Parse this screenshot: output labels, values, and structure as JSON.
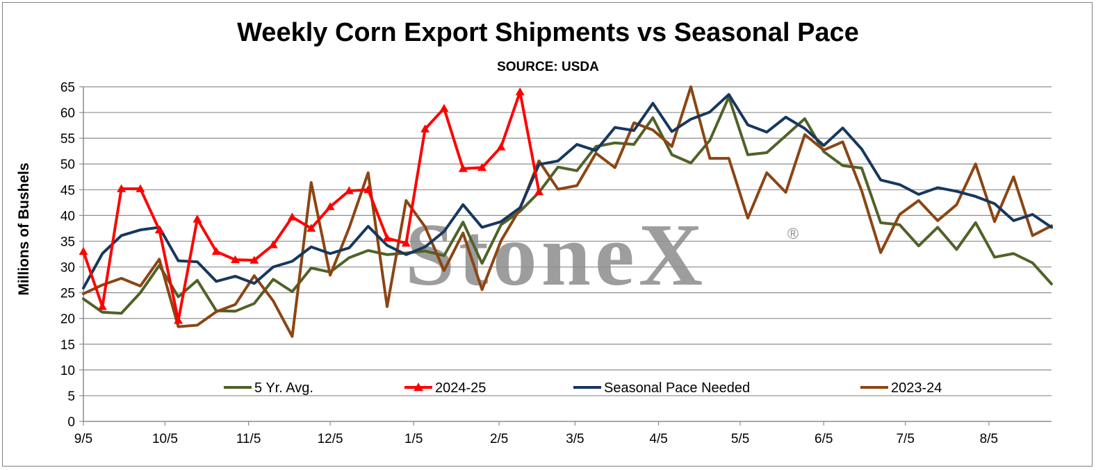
{
  "chart_data": {
    "type": "line",
    "title": "Weekly Corn Export Shipments vs Seasonal Pace",
    "subtitle": "SOURCE: USDA",
    "ylabel": "Millions of Bushels",
    "xlabel": "",
    "ylim": [
      0,
      65
    ],
    "yticks": [
      0,
      5,
      10,
      15,
      20,
      25,
      30,
      35,
      40,
      45,
      50,
      55,
      60,
      65
    ],
    "grid": true,
    "legend_position": "bottom-inside",
    "x_tick_labels": [
      {
        "label": "9/5",
        "week": 0
      },
      {
        "label": "10/5",
        "week": 4.3
      },
      {
        "label": "11/5",
        "week": 8.7
      },
      {
        "label": "12/5",
        "week": 13
      },
      {
        "label": "1/5",
        "week": 17.4
      },
      {
        "label": "2/5",
        "week": 21.9
      },
      {
        "label": "3/5",
        "week": 25.9
      },
      {
        "label": "4/5",
        "week": 30.3
      },
      {
        "label": "5/5",
        "week": 34.6
      },
      {
        "label": "6/5",
        "week": 39
      },
      {
        "label": "7/5",
        "week": 43.3
      },
      {
        "label": "8/5",
        "week": 47.7
      }
    ],
    "x_range_weeks": [
      0,
      51
    ],
    "watermark": "StoneX",
    "watermark_mark": "®",
    "series": [
      {
        "name": "5 Yr. Avg.",
        "color": "#4f6228",
        "marker": "none",
        "values": [
          23.8,
          21.2,
          21.0,
          25.0,
          30.3,
          24.2,
          27.4,
          21.5,
          21.4,
          22.9,
          27.6,
          25.2,
          29.8,
          29.0,
          31.8,
          33.2,
          32.4,
          32.7,
          33.1,
          32.2,
          38.7,
          30.7,
          38.2,
          40.8,
          44.5,
          49.4,
          48.7,
          53.4,
          54.1,
          53.8,
          59.0,
          51.8,
          50.2,
          54.6,
          63.0,
          51.8,
          52.2,
          55.5,
          58.8,
          52.4,
          49.7,
          49.2,
          38.6,
          38.2,
          34.1,
          37.7,
          33.4,
          38.6,
          31.9,
          32.6,
          30.8,
          26.7
        ]
      },
      {
        "name": "2024-25",
        "color": "#ff0000",
        "marker": "triangle",
        "values": [
          33.0,
          22.3,
          45.2,
          45.2,
          37.2,
          19.6,
          39.3,
          33.0,
          31.4,
          31.3,
          34.3,
          39.7,
          37.5,
          41.7,
          44.8,
          45.0,
          35.6,
          34.6,
          56.8,
          60.8,
          49.1,
          49.3,
          53.3,
          64.0,
          44.6
        ]
      },
      {
        "name": "Seasonal Pace Needed",
        "color": "#17375e",
        "marker": "none",
        "values": [
          25.9,
          32.6,
          36.1,
          37.2,
          37.7,
          31.2,
          31.0,
          27.2,
          28.2,
          26.8,
          30.0,
          31.1,
          33.9,
          32.6,
          33.7,
          37.9,
          34.2,
          32.4,
          33.9,
          36.9,
          42.1,
          37.7,
          38.8,
          41.5,
          49.9,
          50.6,
          53.8,
          52.6,
          57.1,
          56.5,
          61.8,
          56.3,
          58.7,
          60.1,
          63.5,
          57.6,
          56.2,
          59.1,
          56.9,
          53.6,
          57.0,
          52.9,
          46.9,
          46.0,
          44.1,
          45.4,
          44.7,
          43.7,
          42.3,
          39.0,
          40.2,
          37.7
        ]
      },
      {
        "name": "2023-24",
        "color": "#8b4513",
        "marker": "none",
        "values": [
          24.8,
          26.5,
          27.8,
          26.3,
          31.5,
          18.4,
          18.7,
          21.3,
          22.7,
          28.3,
          23.4,
          16.5,
          46.4,
          28.4,
          37.6,
          48.3,
          22.3,
          42.9,
          37.8,
          29.3,
          36.6,
          25.6,
          35.1,
          41.3,
          50.6,
          45.1,
          45.8,
          52.1,
          49.3,
          58.0,
          56.6,
          53.4,
          65.0,
          51.1,
          51.1,
          39.5,
          48.3,
          44.5,
          55.7,
          52.7,
          54.3,
          44.8,
          32.8,
          40.2,
          42.9,
          39.0,
          42.1,
          50.0,
          38.8,
          47.5,
          36.1,
          38.0
        ]
      }
    ]
  }
}
